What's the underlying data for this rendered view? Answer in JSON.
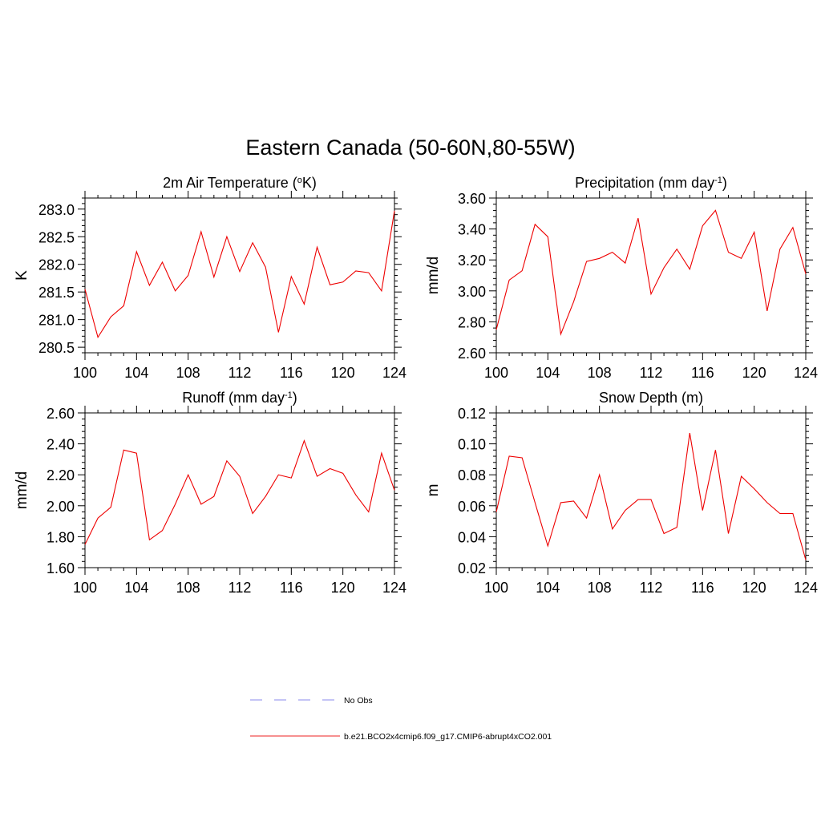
{
  "figure": {
    "title": "Eastern Canada (50-60N,80-55W)"
  },
  "legend": {
    "entries": [
      {
        "label": "No Obs",
        "color": "#8888ee",
        "style": "dashed"
      },
      {
        "label": "b.e21.BCO2x4cmip6.f09_g17.CMIP6-abrupt4xCO2.001",
        "color": "#ee2222",
        "style": "solid"
      }
    ]
  },
  "chart_data": [
    {
      "type": "line",
      "title": "2m Air Temperature",
      "title_unit_html": "(<tspan baseline-shift=\"super\" font-size=\"11\">o</tspan>K)",
      "xlabel": "",
      "ylabel": "K",
      "xlim": [
        100,
        124
      ],
      "ylim": [
        280.4,
        283.2
      ],
      "xticks": [
        100,
        104,
        108,
        112,
        116,
        120,
        124
      ],
      "yticks": [
        280.5,
        281.0,
        281.5,
        282.0,
        282.5,
        283.0
      ],
      "ytick_labels": [
        "280.5",
        "281.0",
        "281.5",
        "282.0",
        "282.5",
        "283.0"
      ],
      "y_minor_step": 0.1,
      "series": [
        {
          "name": "b.e21.BCO2x4cmip6.f09_g17.CMIP6-abrupt4xCO2.001",
          "color": "#ee0000",
          "x": [
            100,
            101,
            102,
            103,
            104,
            105,
            106,
            107,
            108,
            109,
            110,
            111,
            112,
            113,
            114,
            115,
            116,
            117,
            118,
            119,
            120,
            121,
            122,
            123,
            124
          ],
          "values": [
            281.55,
            280.68,
            281.05,
            281.25,
            282.23,
            281.62,
            282.04,
            281.52,
            281.8,
            282.59,
            281.77,
            282.5,
            281.87,
            282.39,
            281.95,
            280.77,
            281.78,
            281.28,
            282.31,
            281.63,
            281.68,
            281.88,
            281.85,
            281.52,
            282.97
          ]
        }
      ]
    },
    {
      "type": "line",
      "title": "Precipitation",
      "title_unit_html": "(mm day<tspan baseline-shift=\"super\" font-size=\"11\">-1</tspan>)",
      "xlabel": "",
      "ylabel": "mm/d",
      "xlim": [
        100,
        124
      ],
      "ylim": [
        2.6,
        3.6
      ],
      "xticks": [
        100,
        104,
        108,
        112,
        116,
        120,
        124
      ],
      "yticks": [
        2.6,
        2.8,
        3.0,
        3.2,
        3.4,
        3.6
      ],
      "ytick_labels": [
        "2.60",
        "2.80",
        "3.00",
        "3.20",
        "3.40",
        "3.60"
      ],
      "y_minor_step": 0.04,
      "series": [
        {
          "name": "b.e21.BCO2x4cmip6.f09_g17.CMIP6-abrupt4xCO2.001",
          "color": "#ee0000",
          "x": [
            100,
            101,
            102,
            103,
            104,
            105,
            106,
            107,
            108,
            109,
            110,
            111,
            112,
            113,
            114,
            115,
            116,
            117,
            118,
            119,
            120,
            121,
            122,
            123,
            124
          ],
          "values": [
            2.75,
            3.07,
            3.13,
            3.43,
            3.35,
            2.72,
            2.93,
            3.19,
            3.21,
            3.25,
            3.18,
            3.47,
            2.98,
            3.15,
            3.27,
            3.14,
            3.42,
            3.52,
            3.25,
            3.21,
            3.38,
            2.87,
            3.27,
            3.41,
            3.11
          ]
        }
      ]
    },
    {
      "type": "line",
      "title": "Runoff",
      "title_unit_html": "(mm day<tspan baseline-shift=\"super\" font-size=\"11\">-1</tspan>)",
      "xlabel": "",
      "ylabel": "mm/d",
      "xlim": [
        100,
        124
      ],
      "ylim": [
        1.6,
        2.6
      ],
      "xticks": [
        100,
        104,
        108,
        112,
        116,
        120,
        124
      ],
      "yticks": [
        1.6,
        1.8,
        2.0,
        2.2,
        2.4,
        2.6
      ],
      "ytick_labels": [
        "1.60",
        "1.80",
        "2.00",
        "2.20",
        "2.40",
        "2.60"
      ],
      "y_minor_step": 0.04,
      "series": [
        {
          "name": "b.e21.BCO2x4cmip6.f09_g17.CMIP6-abrupt4xCO2.001",
          "color": "#ee0000",
          "x": [
            100,
            101,
            102,
            103,
            104,
            105,
            106,
            107,
            108,
            109,
            110,
            111,
            112,
            113,
            114,
            115,
            116,
            117,
            118,
            119,
            120,
            121,
            122,
            123,
            124
          ],
          "values": [
            1.75,
            1.92,
            1.99,
            2.36,
            2.34,
            1.78,
            1.84,
            2.01,
            2.2,
            2.01,
            2.06,
            2.29,
            2.19,
            1.95,
            2.06,
            2.2,
            2.18,
            2.42,
            2.19,
            2.24,
            2.21,
            2.07,
            1.96,
            2.34,
            2.1
          ]
        }
      ]
    },
    {
      "type": "line",
      "title": "Snow Depth (m)",
      "title_unit_html": "",
      "xlabel": "",
      "ylabel": "m",
      "xlim": [
        100,
        124
      ],
      "ylim": [
        0.02,
        0.12
      ],
      "xticks": [
        100,
        104,
        108,
        112,
        116,
        120,
        124
      ],
      "yticks": [
        0.02,
        0.04,
        0.06,
        0.08,
        0.1,
        0.12
      ],
      "ytick_labels": [
        "0.02",
        "0.04",
        "0.06",
        "0.08",
        "0.10",
        "0.12"
      ],
      "y_minor_step": 0.004,
      "series": [
        {
          "name": "b.e21.BCO2x4cmip6.f09_g17.CMIP6-abrupt4xCO2.001",
          "color": "#ee0000",
          "x": [
            100,
            101,
            102,
            103,
            104,
            105,
            106,
            107,
            108,
            109,
            110,
            111,
            112,
            113,
            114,
            115,
            116,
            117,
            118,
            119,
            120,
            121,
            122,
            123,
            124
          ],
          "values": [
            0.056,
            0.092,
            0.091,
            0.062,
            0.034,
            0.062,
            0.063,
            0.052,
            0.08,
            0.045,
            0.057,
            0.064,
            0.064,
            0.042,
            0.046,
            0.107,
            0.057,
            0.096,
            0.042,
            0.079,
            0.071,
            0.062,
            0.055,
            0.055,
            0.025
          ]
        }
      ]
    }
  ]
}
